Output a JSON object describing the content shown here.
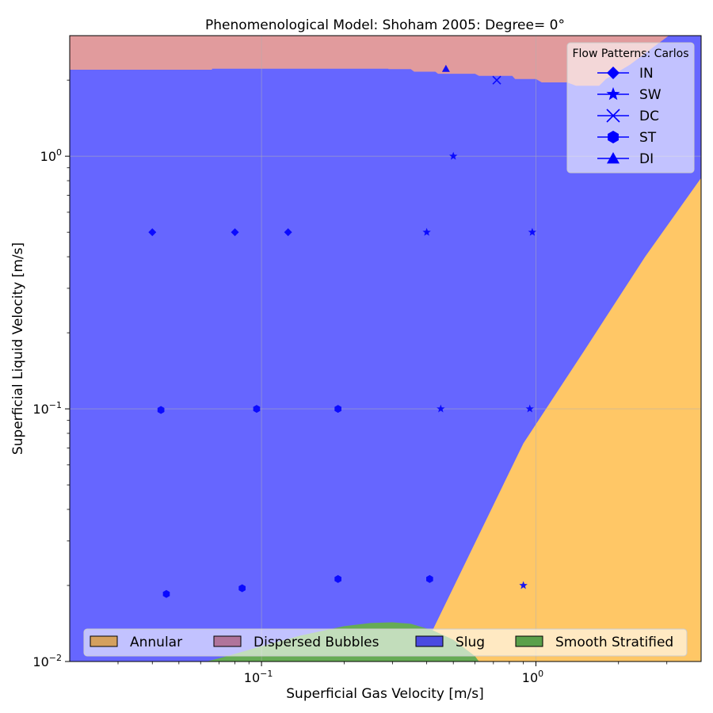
{
  "chart_data": {
    "type": "scatter",
    "title": "Phenomenological Model: Shoham 2005: Degree= 0°",
    "xlabel": "Superficial Gas Velocity [m/s]",
    "ylabel": "Superficial Liquid Velocity [m/s]",
    "xscale": "log",
    "yscale": "log",
    "xlim": [
      0.02,
      4.0
    ],
    "ylim": [
      0.01,
      3.0
    ],
    "grid": true,
    "x_major_ticks": [
      {
        "value": 0.1,
        "base": "10",
        "exp": "−1"
      },
      {
        "value": 1.0,
        "base": "10",
        "exp": "0"
      }
    ],
    "y_major_ticks": [
      {
        "value": 0.01,
        "base": "10",
        "exp": "−2"
      },
      {
        "value": 0.1,
        "base": "10",
        "exp": "−1"
      },
      {
        "value": 1.0,
        "base": "10",
        "exp": "0"
      }
    ],
    "regions": {
      "legend_placement": "bottom",
      "entries": [
        {
          "name": "Annular",
          "color": "#d4a05e"
        },
        {
          "name": "Dispersed Bubbles",
          "color": "#b0749b"
        },
        {
          "name": "Slug",
          "color": "#4a4ae0"
        },
        {
          "name": "Smooth Stratified",
          "color": "#5aa04a"
        }
      ],
      "fill_colors": {
        "slug": "#6666ff",
        "dispersed_bubbles": "#e19b9d",
        "annular": "#ffc766",
        "smooth_stratified": "#66ab55"
      },
      "dispersed_bubbles_boundary": [
        [
          0.02,
          2.2
        ],
        [
          0.066,
          2.2
        ],
        [
          0.066,
          2.22
        ],
        [
          0.29,
          2.22
        ],
        [
          0.29,
          2.21
        ],
        [
          0.35,
          2.21
        ],
        [
          0.36,
          2.16
        ],
        [
          0.43,
          2.16
        ],
        [
          0.44,
          2.12
        ],
        [
          0.6,
          2.12
        ],
        [
          0.62,
          2.08
        ],
        [
          0.82,
          2.08
        ],
        [
          0.84,
          2.02
        ],
        [
          1.0,
          2.02
        ],
        [
          1.05,
          1.96
        ],
        [
          1.3,
          1.96
        ],
        [
          1.4,
          1.9
        ],
        [
          1.7,
          1.9
        ],
        [
          1.8,
          2.02
        ],
        [
          2.2,
          2.3
        ],
        [
          2.8,
          2.8
        ],
        [
          3.05,
          3.0
        ]
      ],
      "annular_boundary": [
        [
          0.37,
          0.01
        ],
        [
          0.45,
          0.0155
        ],
        [
          0.9,
          0.073
        ],
        [
          1.5,
          0.17
        ],
        [
          2.5,
          0.4
        ],
        [
          4.0,
          0.82
        ]
      ],
      "stratified_boundary": [
        [
          0.063,
          0.01
        ],
        [
          0.075,
          0.0105
        ],
        [
          0.1,
          0.0115
        ],
        [
          0.14,
          0.0127
        ],
        [
          0.2,
          0.0138
        ],
        [
          0.25,
          0.0142
        ],
        [
          0.3,
          0.0143
        ],
        [
          0.35,
          0.0141
        ],
        [
          0.42,
          0.0133
        ],
        [
          0.5,
          0.0122
        ],
        [
          0.6,
          0.0105
        ],
        [
          0.62,
          0.01
        ]
      ]
    },
    "marker_legend": {
      "title": "Flow Patterns: Carlos",
      "placement": "top-right",
      "color": "#0000ff",
      "entries": [
        {
          "label": "IN",
          "marker": "diamond"
        },
        {
          "label": "SW",
          "marker": "star"
        },
        {
          "label": "DC",
          "marker": "x"
        },
        {
          "label": "ST",
          "marker": "hexagon"
        },
        {
          "label": "DI",
          "marker": "triangle"
        }
      ]
    },
    "series": [
      {
        "label": "IN",
        "marker": "diamond",
        "points": [
          [
            0.04,
            0.5
          ],
          [
            0.08,
            0.5
          ],
          [
            0.125,
            0.5
          ]
        ]
      },
      {
        "label": "SW",
        "marker": "star",
        "points": [
          [
            0.5,
            1.0
          ],
          [
            0.4,
            0.5
          ],
          [
            0.97,
            0.5
          ],
          [
            0.45,
            0.1
          ],
          [
            0.95,
            0.1
          ],
          [
            0.9,
            0.02
          ]
        ]
      },
      {
        "label": "DC",
        "marker": "x",
        "points": [
          [
            0.72,
            2.0
          ]
        ]
      },
      {
        "label": "ST",
        "marker": "hexagon",
        "points": [
          [
            0.043,
            0.099
          ],
          [
            0.096,
            0.1
          ],
          [
            0.19,
            0.1
          ],
          [
            0.045,
            0.0185
          ],
          [
            0.085,
            0.0195
          ],
          [
            0.19,
            0.0212
          ],
          [
            0.41,
            0.0212
          ]
        ]
      },
      {
        "label": "DI",
        "marker": "triangle",
        "points": [
          [
            0.47,
            2.22
          ]
        ]
      }
    ]
  }
}
